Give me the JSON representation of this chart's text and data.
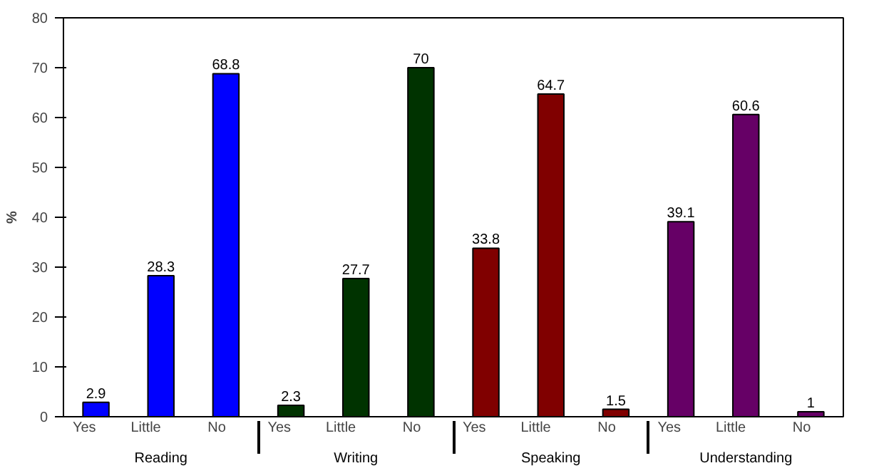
{
  "chart_data": {
    "type": "bar",
    "ylabel": "%",
    "categories": [
      "Yes",
      "Little",
      "No",
      "Yes",
      "Little",
      "No",
      "Yes",
      "Little",
      "No",
      "Yes",
      "Little",
      "No"
    ],
    "series": [
      {
        "name": "Reading",
        "color": "#0000ff",
        "values": [
          2.9,
          28.3,
          68.8,
          null,
          null,
          null,
          null,
          null,
          null,
          null,
          null,
          null
        ]
      },
      {
        "name": "Writing",
        "color": "#003300",
        "values": [
          null,
          null,
          null,
          2.3,
          27.7,
          70,
          null,
          null,
          null,
          null,
          null,
          null
        ]
      },
      {
        "name": "Speaking",
        "color": "#800000",
        "values": [
          null,
          null,
          null,
          null,
          null,
          null,
          33.8,
          64.7,
          1.5,
          null,
          null,
          null
        ]
      },
      {
        "name": "Understanding",
        "color": "#660066",
        "values": [
          null,
          null,
          null,
          null,
          null,
          null,
          null,
          null,
          null,
          39.1,
          60.6,
          1
        ]
      }
    ],
    "ylim": [
      0,
      80
    ],
    "yticks": [
      0,
      10,
      20,
      30,
      40,
      50,
      60,
      70,
      80
    ],
    "data_labels": true,
    "grid": false
  }
}
